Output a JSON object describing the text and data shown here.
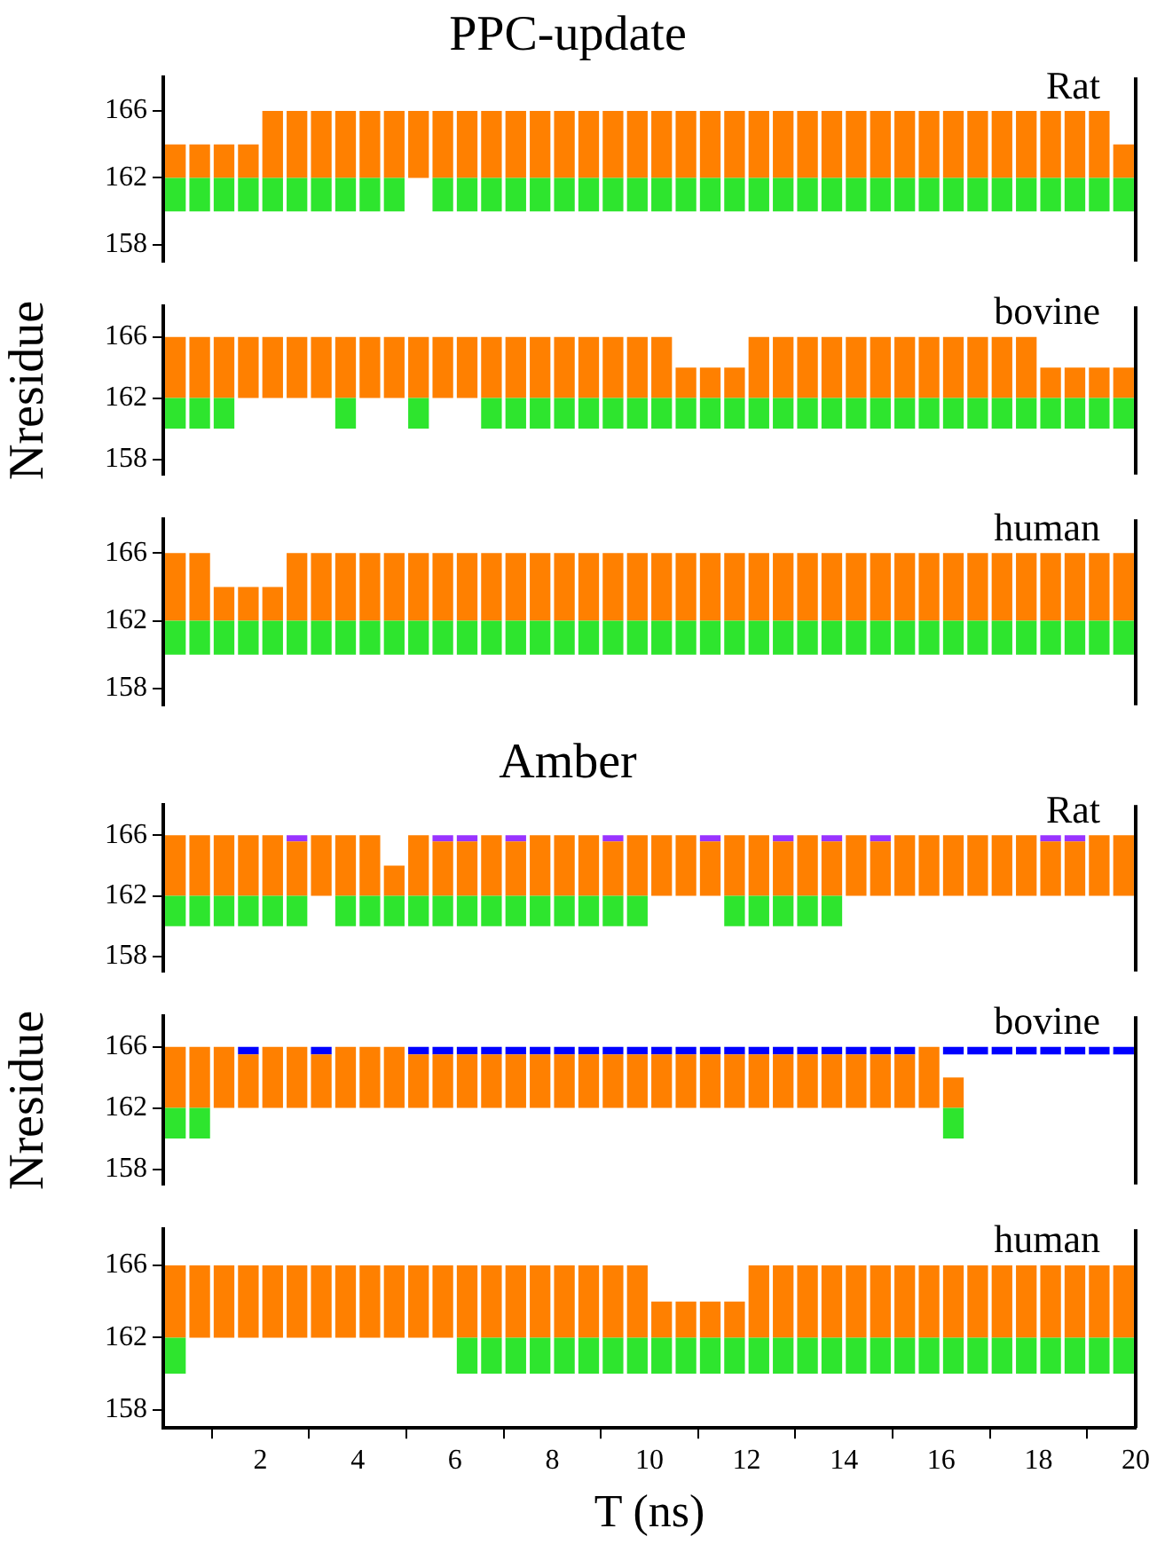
{
  "chart_data": [
    {
      "type": "bar",
      "title": "PPC-update",
      "annotations": [
        "Rat"
      ],
      "x": [
        0.25,
        0.75,
        1.25,
        1.75,
        2.25,
        2.75,
        3.25,
        3.75,
        4.25,
        4.75,
        5.25,
        5.75,
        6.25,
        6.75,
        7.25,
        7.75,
        8.25,
        8.75,
        9.25,
        9.75,
        10.25,
        10.75,
        11.25,
        11.75,
        12.25,
        12.75,
        13.25,
        13.75,
        14.25,
        14.75,
        15.25,
        15.75,
        16.25,
        16.75,
        17.25,
        17.75,
        18.25,
        18.75,
        19.25,
        19.75
      ],
      "xlim": [
        0,
        20
      ],
      "ylim": [
        157,
        168
      ],
      "yticks": [
        158,
        162,
        166
      ],
      "tick_labels": "y",
      "series": [
        {
          "color": "#2ee52e",
          "base": [
            160,
            160,
            160,
            160,
            160,
            160,
            160,
            160,
            160,
            160,
            null,
            160,
            160,
            160,
            160,
            160,
            160,
            160,
            160,
            160,
            160,
            160,
            160,
            160,
            160,
            160,
            160,
            160,
            160,
            160,
            160,
            160,
            160,
            160,
            160,
            160,
            160,
            160,
            160,
            160
          ],
          "values": [
            2,
            2,
            2,
            2,
            2,
            2,
            2,
            2,
            2,
            2,
            null,
            2,
            2,
            2,
            2,
            2,
            2,
            2,
            2,
            2,
            2,
            2,
            2,
            2,
            2,
            2,
            2,
            2,
            2,
            2,
            2,
            2,
            2,
            2,
            2,
            2,
            2,
            2,
            2,
            2
          ]
        },
        {
          "color": "#ff8000",
          "base": [
            162,
            162,
            162,
            162,
            162,
            162,
            162,
            162,
            162,
            162,
            162,
            162,
            162,
            162,
            162,
            162,
            162,
            162,
            162,
            162,
            162,
            162,
            162,
            162,
            162,
            162,
            162,
            162,
            162,
            162,
            162,
            162,
            162,
            162,
            162,
            162,
            162,
            162,
            162,
            162
          ],
          "values": [
            2,
            2,
            2,
            2,
            4,
            4,
            4,
            4,
            4,
            4,
            4,
            4,
            4,
            4,
            4,
            4,
            4,
            4,
            4,
            4,
            4,
            4,
            4,
            4,
            4,
            4,
            4,
            4,
            4,
            4,
            4,
            4,
            4,
            4,
            4,
            4,
            4,
            4,
            4,
            2
          ]
        }
      ]
    },
    {
      "type": "bar",
      "annotations": [
        "bovine"
      ],
      "ylabel": "Nresidue",
      "x": [
        0.25,
        0.75,
        1.25,
        1.75,
        2.25,
        2.75,
        3.25,
        3.75,
        4.25,
        4.75,
        5.25,
        5.75,
        6.25,
        6.75,
        7.25,
        7.75,
        8.25,
        8.75,
        9.25,
        9.75,
        10.25,
        10.75,
        11.25,
        11.75,
        12.25,
        12.75,
        13.25,
        13.75,
        14.25,
        14.75,
        15.25,
        15.75,
        16.25,
        16.75,
        17.25,
        17.75,
        18.25,
        18.75,
        19.25,
        19.75
      ],
      "xlim": [
        0,
        20
      ],
      "ylim": [
        157,
        168
      ],
      "yticks": [
        158,
        162,
        166
      ],
      "tick_labels": "y",
      "series": [
        {
          "color": "#2ee52e",
          "base": [
            160,
            160,
            160,
            null,
            null,
            null,
            null,
            160,
            null,
            null,
            160,
            null,
            null,
            160,
            160,
            160,
            160,
            160,
            160,
            160,
            160,
            160,
            160,
            160,
            160,
            160,
            160,
            160,
            160,
            160,
            160,
            160,
            160,
            160,
            160,
            160,
            160,
            160,
            160,
            160
          ],
          "values": [
            2,
            2,
            2,
            null,
            null,
            null,
            null,
            2,
            null,
            null,
            2,
            null,
            null,
            2,
            2,
            2,
            2,
            2,
            2,
            2,
            2,
            2,
            2,
            2,
            2,
            2,
            2,
            2,
            2,
            2,
            2,
            2,
            2,
            2,
            2,
            2,
            2,
            2,
            2,
            2
          ]
        },
        {
          "color": "#ff8000",
          "base": [
            162,
            162,
            162,
            162,
            162,
            162,
            162,
            162,
            162,
            162,
            162,
            162,
            162,
            162,
            162,
            162,
            162,
            162,
            162,
            162,
            162,
            162,
            162,
            162,
            162,
            162,
            162,
            162,
            162,
            162,
            162,
            162,
            162,
            162,
            162,
            162,
            162,
            162,
            162,
            162
          ],
          "values": [
            4,
            4,
            4,
            4,
            4,
            4,
            4,
            4,
            4,
            4,
            4,
            4,
            4,
            4,
            4,
            4,
            4,
            4,
            4,
            4,
            4,
            2,
            2,
            2,
            4,
            4,
            4,
            4,
            4,
            4,
            4,
            4,
            4,
            4,
            4,
            4,
            2,
            2,
            2,
            2
          ]
        }
      ]
    },
    {
      "type": "bar",
      "annotations": [
        "human"
      ],
      "x": [
        0.25,
        0.75,
        1.25,
        1.75,
        2.25,
        2.75,
        3.25,
        3.75,
        4.25,
        4.75,
        5.25,
        5.75,
        6.25,
        6.75,
        7.25,
        7.75,
        8.25,
        8.75,
        9.25,
        9.75,
        10.25,
        10.75,
        11.25,
        11.75,
        12.25,
        12.75,
        13.25,
        13.75,
        14.25,
        14.75,
        15.25,
        15.75,
        16.25,
        16.75,
        17.25,
        17.75,
        18.25,
        18.75,
        19.25,
        19.75
      ],
      "xlim": [
        0,
        20
      ],
      "ylim": [
        157,
        168
      ],
      "yticks": [
        158,
        162,
        166
      ],
      "tick_labels": "y",
      "series": [
        {
          "color": "#2ee52e",
          "base": [
            160,
            160,
            160,
            160,
            160,
            160,
            160,
            160,
            160,
            160,
            160,
            160,
            160,
            160,
            160,
            160,
            160,
            160,
            160,
            160,
            160,
            160,
            160,
            160,
            160,
            160,
            160,
            160,
            160,
            160,
            160,
            160,
            160,
            160,
            160,
            160,
            160,
            160,
            160,
            160
          ],
          "values": [
            2,
            2,
            2,
            2,
            2,
            2,
            2,
            2,
            2,
            2,
            2,
            2,
            2,
            2,
            2,
            2,
            2,
            2,
            2,
            2,
            2,
            2,
            2,
            2,
            2,
            2,
            2,
            2,
            2,
            2,
            2,
            2,
            2,
            2,
            2,
            2,
            2,
            2,
            2,
            2
          ]
        },
        {
          "color": "#ff8000",
          "base": [
            162,
            162,
            162,
            162,
            162,
            162,
            162,
            162,
            162,
            162,
            162,
            162,
            162,
            162,
            162,
            162,
            162,
            162,
            162,
            162,
            162,
            162,
            162,
            162,
            162,
            162,
            162,
            162,
            162,
            162,
            162,
            162,
            162,
            162,
            162,
            162,
            162,
            162,
            162,
            162
          ],
          "values": [
            4,
            4,
            2,
            2,
            2,
            4,
            4,
            4,
            4,
            4,
            4,
            4,
            4,
            4,
            4,
            4,
            4,
            4,
            4,
            4,
            4,
            4,
            4,
            4,
            4,
            4,
            4,
            4,
            4,
            4,
            4,
            4,
            4,
            4,
            4,
            4,
            4,
            4,
            4,
            4
          ]
        }
      ]
    },
    {
      "type": "bar",
      "title": "Amber",
      "annotations": [
        "Rat"
      ],
      "x": [
        0.25,
        0.75,
        1.25,
        1.75,
        2.25,
        2.75,
        3.25,
        3.75,
        4.25,
        4.75,
        5.25,
        5.75,
        6.25,
        6.75,
        7.25,
        7.75,
        8.25,
        8.75,
        9.25,
        9.75,
        10.25,
        10.75,
        11.25,
        11.75,
        12.25,
        12.75,
        13.25,
        13.75,
        14.25,
        14.75,
        15.25,
        15.75,
        16.25,
        16.75,
        17.25,
        17.75,
        18.25,
        18.75,
        19.25,
        19.75
      ],
      "xlim": [
        0,
        20
      ],
      "ylim": [
        157,
        168
      ],
      "yticks": [
        158,
        162,
        166
      ],
      "tick_labels": "y",
      "series": [
        {
          "color": "#2ee52e",
          "base": [
            160,
            160,
            160,
            160,
            160,
            160,
            null,
            160,
            160,
            160,
            160,
            160,
            160,
            160,
            160,
            160,
            160,
            160,
            160,
            160,
            null,
            null,
            null,
            160,
            160,
            160,
            160,
            160,
            null,
            null,
            null,
            null,
            null,
            null,
            null,
            null,
            null,
            null,
            null,
            null
          ],
          "values": [
            2,
            2,
            2,
            2,
            2,
            2,
            null,
            2,
            2,
            2,
            2,
            2,
            2,
            2,
            2,
            2,
            2,
            2,
            2,
            2,
            null,
            null,
            null,
            2,
            2,
            2,
            2,
            2,
            null,
            null,
            null,
            null,
            null,
            null,
            null,
            null,
            null,
            null,
            null,
            null
          ]
        },
        {
          "color": "#ff8000",
          "base": [
            162,
            162,
            162,
            162,
            162,
            162,
            162,
            162,
            162,
            162,
            162,
            162,
            162,
            162,
            162,
            162,
            162,
            162,
            162,
            162,
            162,
            162,
            162,
            162,
            162,
            162,
            162,
            162,
            162,
            162,
            162,
            162,
            162,
            162,
            162,
            162,
            162,
            162,
            162,
            162
          ],
          "values": [
            4,
            4,
            4,
            4,
            4,
            3.6,
            4,
            4,
            4,
            2,
            4,
            3.6,
            3.6,
            4,
            3.6,
            4,
            4,
            4,
            3.6,
            4,
            4,
            4,
            3.6,
            4,
            4,
            3.6,
            4,
            3.6,
            4,
            3.6,
            4,
            4,
            4,
            4,
            4,
            4,
            3.6,
            3.6,
            4,
            4
          ]
        },
        {
          "color": "#9933ff",
          "base": [
            null,
            null,
            null,
            null,
            null,
            165.6,
            null,
            null,
            null,
            null,
            null,
            165.6,
            165.6,
            null,
            165.6,
            null,
            null,
            null,
            165.6,
            null,
            null,
            null,
            165.6,
            null,
            null,
            165.6,
            null,
            165.6,
            null,
            165.6,
            null,
            null,
            null,
            null,
            null,
            null,
            165.6,
            165.6,
            null,
            null
          ],
          "values": [
            null,
            null,
            null,
            null,
            null,
            0.4,
            null,
            null,
            null,
            null,
            null,
            0.4,
            0.4,
            null,
            0.4,
            null,
            null,
            null,
            0.4,
            null,
            null,
            null,
            0.4,
            null,
            null,
            0.4,
            null,
            0.4,
            null,
            0.4,
            null,
            null,
            null,
            null,
            null,
            null,
            0.4,
            0.4,
            null,
            null
          ]
        }
      ]
    },
    {
      "type": "bar",
      "annotations": [
        "bovine"
      ],
      "ylabel": "Nresidue",
      "x": [
        0.25,
        0.75,
        1.25,
        1.75,
        2.25,
        2.75,
        3.25,
        3.75,
        4.25,
        4.75,
        5.25,
        5.75,
        6.25,
        6.75,
        7.25,
        7.75,
        8.25,
        8.75,
        9.25,
        9.75,
        10.25,
        10.75,
        11.25,
        11.75,
        12.25,
        12.75,
        13.25,
        13.75,
        14.25,
        14.75,
        15.25,
        15.75,
        16.25,
        16.75,
        17.25,
        17.75,
        18.25,
        18.75,
        19.25,
        19.75
      ],
      "xlim": [
        0,
        20
      ],
      "ylim": [
        157,
        168
      ],
      "yticks": [
        158,
        162,
        166
      ],
      "tick_labels": "y",
      "series": [
        {
          "color": "#2ee52e",
          "base": [
            160,
            160,
            null,
            null,
            null,
            null,
            null,
            null,
            null,
            null,
            null,
            null,
            null,
            null,
            null,
            null,
            null,
            null,
            null,
            null,
            null,
            null,
            null,
            null,
            null,
            null,
            null,
            null,
            null,
            null,
            null,
            null,
            160,
            null,
            null,
            null,
            null,
            null,
            null,
            null
          ],
          "values": [
            2,
            2,
            null,
            null,
            null,
            null,
            null,
            null,
            null,
            null,
            null,
            null,
            null,
            null,
            null,
            null,
            null,
            null,
            null,
            null,
            null,
            null,
            null,
            null,
            null,
            null,
            null,
            null,
            null,
            null,
            null,
            null,
            2,
            null,
            null,
            null,
            null,
            null,
            null,
            null
          ]
        },
        {
          "color": "#ff8000",
          "base": [
            162,
            162,
            162,
            162,
            162,
            162,
            162,
            162,
            162,
            162,
            162,
            162,
            162,
            162,
            162,
            162,
            162,
            162,
            162,
            162,
            162,
            162,
            162,
            162,
            162,
            162,
            162,
            162,
            162,
            162,
            162,
            162,
            162,
            null,
            null,
            null,
            null,
            null,
            null,
            null
          ],
          "values": [
            4,
            4,
            4,
            3.5,
            4,
            4,
            3.5,
            4,
            4,
            4,
            3.5,
            3.5,
            3.5,
            3.5,
            3.5,
            3.5,
            3.5,
            3.5,
            3.5,
            3.5,
            3.5,
            3.5,
            3.5,
            3.5,
            3.5,
            3.5,
            3.5,
            3.5,
            3.5,
            3.5,
            3.5,
            4,
            2,
            null,
            null,
            null,
            null,
            null,
            null,
            null
          ]
        },
        {
          "color": "#0000ff",
          "base": [
            null,
            null,
            null,
            165.5,
            null,
            null,
            165.5,
            null,
            null,
            null,
            165.5,
            165.5,
            165.5,
            165.5,
            165.5,
            165.5,
            165.5,
            165.5,
            165.5,
            165.5,
            165.5,
            165.5,
            165.5,
            165.5,
            165.5,
            165.5,
            165.5,
            165.5,
            165.5,
            165.5,
            165.5,
            null,
            165.5,
            165.5,
            165.5,
            165.5,
            165.5,
            165.5,
            165.5,
            165.5
          ],
          "values": [
            null,
            null,
            null,
            0.5,
            null,
            null,
            0.5,
            null,
            null,
            null,
            0.5,
            0.5,
            0.5,
            0.5,
            0.5,
            0.5,
            0.5,
            0.5,
            0.5,
            0.5,
            0.5,
            0.5,
            0.5,
            0.5,
            0.5,
            0.5,
            0.5,
            0.5,
            0.5,
            0.5,
            0.5,
            null,
            0.5,
            0.5,
            0.5,
            0.5,
            0.5,
            0.5,
            0.5,
            0.5
          ]
        }
      ]
    },
    {
      "type": "bar",
      "annotations": [
        "human"
      ],
      "xlabel": "T (ns)",
      "x": [
        0.25,
        0.75,
        1.25,
        1.75,
        2.25,
        2.75,
        3.25,
        3.75,
        4.25,
        4.75,
        5.25,
        5.75,
        6.25,
        6.75,
        7.25,
        7.75,
        8.25,
        8.75,
        9.25,
        9.75,
        10.25,
        10.75,
        11.25,
        11.75,
        12.25,
        12.75,
        13.25,
        13.75,
        14.25,
        14.75,
        15.25,
        15.75,
        16.25,
        16.75,
        17.25,
        17.75,
        18.25,
        18.75,
        19.25,
        19.75
      ],
      "xlim": [
        0,
        20
      ],
      "xticks": [
        2,
        4,
        6,
        8,
        10,
        12,
        14,
        16,
        18,
        20
      ],
      "ylim": [
        157,
        168
      ],
      "yticks": [
        158,
        162,
        166
      ],
      "series": [
        {
          "color": "#2ee52e",
          "base": [
            160,
            null,
            null,
            null,
            null,
            null,
            null,
            null,
            null,
            null,
            null,
            null,
            160,
            160,
            160,
            160,
            160,
            160,
            160,
            160,
            160,
            160,
            160,
            160,
            160,
            160,
            160,
            160,
            160,
            160,
            160,
            160,
            160,
            160,
            160,
            160,
            160,
            160,
            160,
            160
          ],
          "values": [
            2,
            null,
            null,
            null,
            null,
            null,
            null,
            null,
            null,
            null,
            null,
            null,
            2,
            2,
            2,
            2,
            2,
            2,
            2,
            2,
            2,
            2,
            2,
            2,
            2,
            2,
            2,
            2,
            2,
            2,
            2,
            2,
            2,
            2,
            2,
            2,
            2,
            2,
            2,
            2
          ]
        },
        {
          "color": "#ff8000",
          "base": [
            162,
            162,
            162,
            162,
            162,
            162,
            162,
            162,
            162,
            162,
            162,
            162,
            162,
            162,
            162,
            162,
            162,
            162,
            162,
            162,
            162,
            162,
            162,
            162,
            162,
            162,
            162,
            162,
            162,
            162,
            162,
            162,
            162,
            162,
            162,
            162,
            162,
            162,
            162,
            162
          ],
          "values": [
            4,
            4,
            4,
            4,
            4,
            4,
            4,
            4,
            4,
            4,
            4,
            4,
            4,
            4,
            4,
            4,
            4,
            4,
            4,
            4,
            2,
            2,
            2,
            2,
            4,
            4,
            4,
            4,
            4,
            4,
            4,
            4,
            4,
            4,
            4,
            4,
            4,
            4,
            4,
            4
          ]
        }
      ]
    }
  ]
}
